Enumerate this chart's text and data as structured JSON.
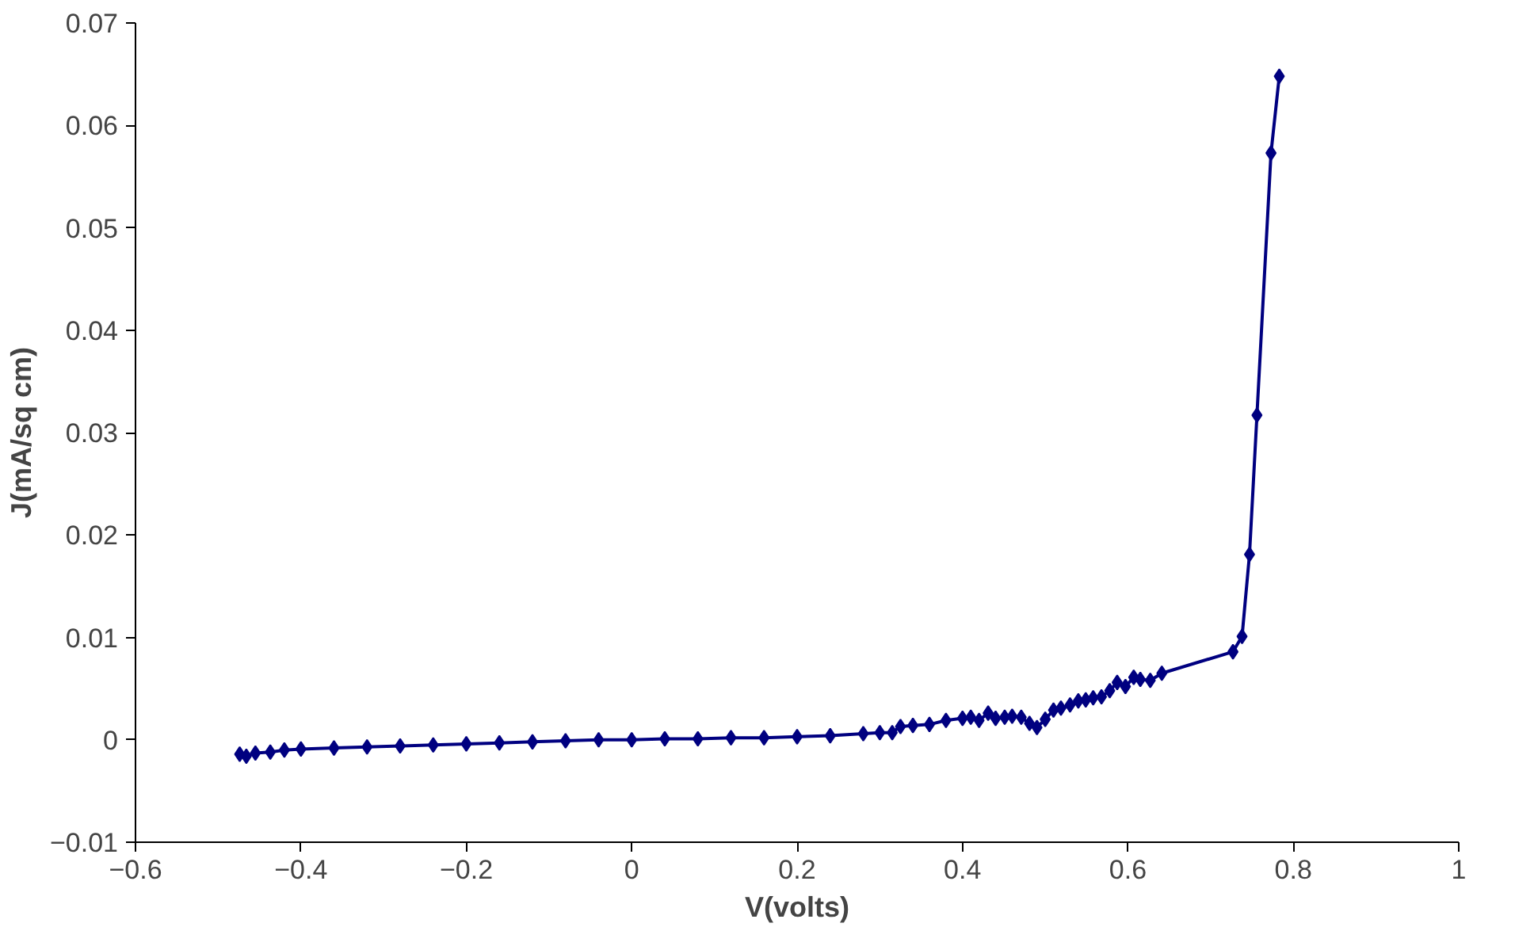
{
  "chart_data": {
    "type": "line",
    "xlabel": "V(volts)",
    "ylabel": "J(mA/sq cm)",
    "xlim": [
      -0.6,
      1
    ],
    "xticks": [
      -0.6,
      -0.4,
      -0.2,
      0,
      0.2,
      0.4,
      0.6,
      0.8,
      1
    ],
    "ylim": [
      -0.01,
      0.07
    ],
    "yticks": [
      -0.01,
      0,
      0.01,
      0.02,
      0.03,
      0.04,
      0.05,
      0.06,
      0.07
    ],
    "marker": "diamond",
    "grid": false,
    "series": [
      {
        "color": "#000080",
        "x": [
          -0.474,
          -0.466,
          -0.455,
          -0.437,
          -0.42,
          -0.4,
          -0.36,
          -0.32,
          -0.28,
          -0.24,
          -0.2,
          -0.16,
          -0.12,
          -0.08,
          -0.04,
          0,
          0.04,
          0.08,
          0.12,
          0.16,
          0.2,
          0.24,
          0.28,
          0.3,
          0.315,
          0.325,
          0.34,
          0.36,
          0.38,
          0.4,
          0.41,
          0.42,
          0.431,
          0.44,
          0.451,
          0.46,
          0.471,
          0.481,
          0.49,
          0.5,
          0.51,
          0.519,
          0.53,
          0.54,
          0.549,
          0.558,
          0.568,
          0.578,
          0.587,
          0.597,
          0.607,
          0.615,
          0.627,
          0.641,
          0.727,
          0.738,
          0.747,
          0.756,
          0.773,
          0.783
        ],
        "values": [
          -0.0014,
          -0.0016,
          -0.0013,
          -0.0012,
          -0.001,
          -0.0009,
          -0.0008,
          -0.0007,
          -0.0006,
          -0.0005,
          -0.0004,
          -0.0003,
          -0.0002,
          -0.0001,
          0,
          0,
          0.0001,
          0.0001,
          0.0002,
          0.0002,
          0.0003,
          0.0004,
          0.0006,
          0.0007,
          0.0007,
          0.0013,
          0.0014,
          0.0015,
          0.0019,
          0.0021,
          0.0022,
          0.0019,
          0.0026,
          0.0021,
          0.0022,
          0.0023,
          0.0022,
          0.0016,
          0.0012,
          0.002,
          0.0029,
          0.0031,
          0.0034,
          0.0038,
          0.0039,
          0.0041,
          0.0042,
          0.0048,
          0.0056,
          0.0052,
          0.0061,
          0.0059,
          0.0058,
          0.0065,
          0.0086,
          0.0101,
          0.0181,
          0.0317,
          0.0573,
          0.0648
        ]
      }
    ]
  }
}
